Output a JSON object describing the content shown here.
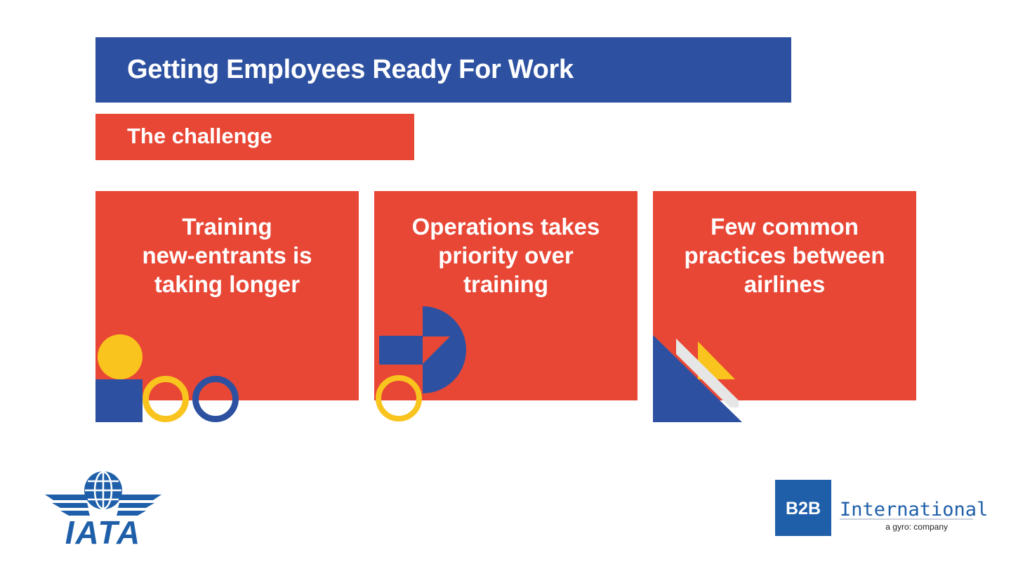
{
  "slide": {
    "title": "Getting Employees Ready For Work",
    "subtitle": "The challenge"
  },
  "cards": [
    {
      "text": "Training\nnew-entrants is\ntaking longer"
    },
    {
      "text": "Operations takes\npriority over\ntraining"
    },
    {
      "text": "Few common\npractices between\nairlines"
    }
  ],
  "logos": {
    "iata": "IATA",
    "b2b": "B2B",
    "b2b_name": "International",
    "b2b_tagline": "a gyro: company"
  },
  "colors": {
    "blue": "#2d51a0",
    "red": "#e84736",
    "yellow": "#f9c41d",
    "light_grey": "#e6e6e6",
    "b2b_blue": "#1f5fa9"
  },
  "icons": [
    "globe-icon",
    "wings-icon"
  ]
}
